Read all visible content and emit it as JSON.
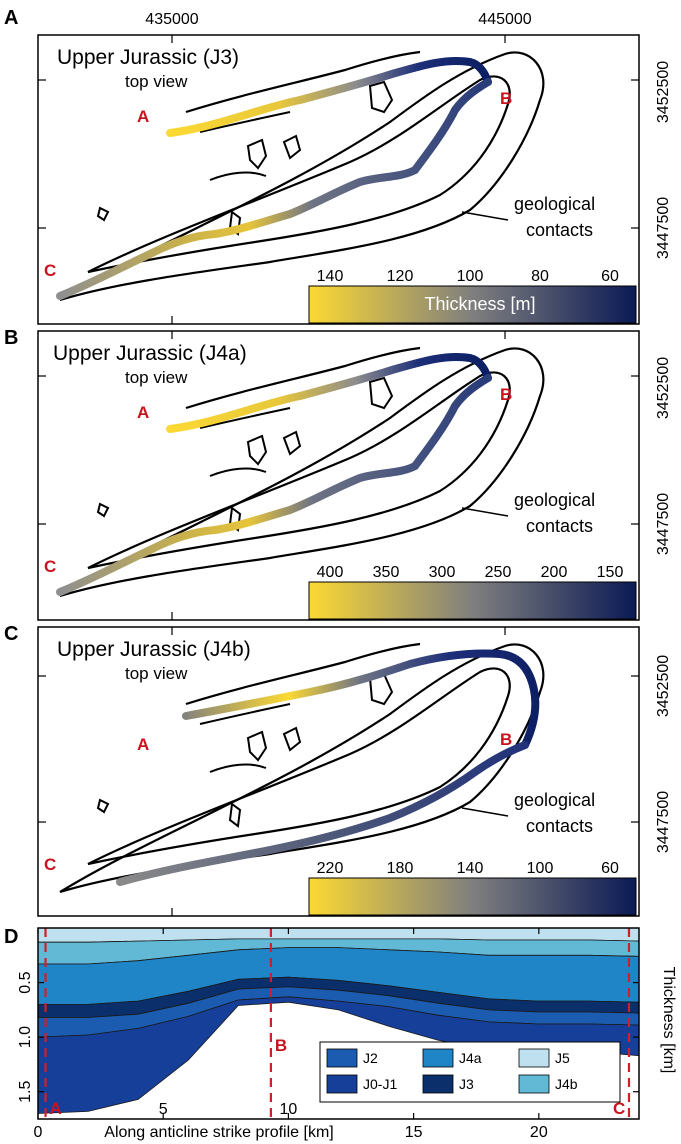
{
  "figure": {
    "panel_a": {
      "label": "A",
      "title": "Upper Jurassic (J3)",
      "subtitle": "top view",
      "colorbar": {
        "ticks": [
          "140",
          "120",
          "100",
          "80",
          "60"
        ],
        "label": "Thickness [m]"
      }
    },
    "panel_b": {
      "label": "B",
      "title": "Upper Jurassic (J4a)",
      "subtitle": "top view",
      "colorbar": {
        "ticks": [
          "400",
          "350",
          "300",
          "250",
          "200",
          "150"
        ]
      }
    },
    "panel_c": {
      "label": "C",
      "title": "Upper Jurassic (J4b)",
      "subtitle": "top view",
      "colorbar": {
        "ticks": [
          "220",
          "180",
          "140",
          "100",
          "60"
        ]
      }
    },
    "panel_d": {
      "label": "D"
    },
    "x_ticks": [
      "435000",
      "445000"
    ],
    "y_ticks": [
      "3452500",
      "3447500"
    ],
    "points": {
      "a": "A",
      "b": "B",
      "c": "C"
    },
    "annotation": {
      "line1": "geological",
      "line2": "contacts"
    },
    "colors": {
      "yellow": "#fcd933",
      "mid": "#7f7f7f",
      "navy": "#0b1a55",
      "point_red": "#c8141e"
    }
  },
  "chart_data": {
    "type": "area",
    "x": [
      0,
      2,
      4,
      6,
      8,
      10,
      12,
      14,
      16,
      18,
      20,
      22,
      24
    ],
    "xlim": [
      0,
      24
    ],
    "ylim": [
      1.75,
      0
    ],
    "xlabel": "Along anticline strike profile [km]",
    "ylabel": "Thickness [km]",
    "x_ticks": [
      {
        "v": 0,
        "label": "0"
      },
      {
        "v": 5,
        "label": "5"
      },
      {
        "v": 10,
        "label": "10"
      },
      {
        "v": 15,
        "label": "15"
      },
      {
        "v": 20,
        "label": "20"
      }
    ],
    "y_ticks": [
      {
        "v": 0.5,
        "label": "0.5"
      },
      {
        "v": 1.0,
        "label": "1.0"
      },
      {
        "v": 1.5,
        "label": "1.5"
      }
    ],
    "markers": [
      {
        "x": 0.3,
        "label": "A"
      },
      {
        "x": 9.3,
        "label": "B"
      },
      {
        "x": 23.6,
        "label": "C"
      }
    ],
    "series": [
      {
        "name": "J5",
        "color": "#bfe0ee",
        "values": [
          0.13,
          0.13,
          0.12,
          0.11,
          0.1,
          0.1,
          0.1,
          0.1,
          0.1,
          0.11,
          0.11,
          0.11,
          0.12
        ]
      },
      {
        "name": "J4b",
        "color": "#62b9d6",
        "values": [
          0.2,
          0.2,
          0.18,
          0.14,
          0.1,
          0.08,
          0.08,
          0.1,
          0.12,
          0.14,
          0.14,
          0.14,
          0.14
        ]
      },
      {
        "name": "J4a",
        "color": "#1f85c7",
        "values": [
          0.37,
          0.37,
          0.37,
          0.33,
          0.27,
          0.27,
          0.3,
          0.33,
          0.37,
          0.4,
          0.42,
          0.42,
          0.42
        ]
      },
      {
        "name": "J3",
        "color": "#0a2f6b",
        "values": [
          0.12,
          0.12,
          0.12,
          0.11,
          0.09,
          0.09,
          0.09,
          0.09,
          0.1,
          0.1,
          0.1,
          0.1,
          0.1
        ]
      },
      {
        "name": "J2",
        "color": "#1b5cb0",
        "values": [
          0.18,
          0.16,
          0.13,
          0.12,
          0.1,
          0.09,
          0.1,
          0.1,
          0.11,
          0.11,
          0.11,
          0.11,
          0.11
        ]
      },
      {
        "name": "J0-J1",
        "color": "#163f9a",
        "values": [
          0.7,
          0.7,
          0.65,
          0.4,
          0.05,
          0.05,
          0.08,
          0.18,
          0.23,
          0.25,
          0.27,
          0.25,
          0.28
        ]
      }
    ],
    "legend": [
      "J2",
      "J4a",
      "J5",
      "J0-J1",
      "J3",
      "J4b"
    ],
    "legend_position": "bottom-right"
  }
}
